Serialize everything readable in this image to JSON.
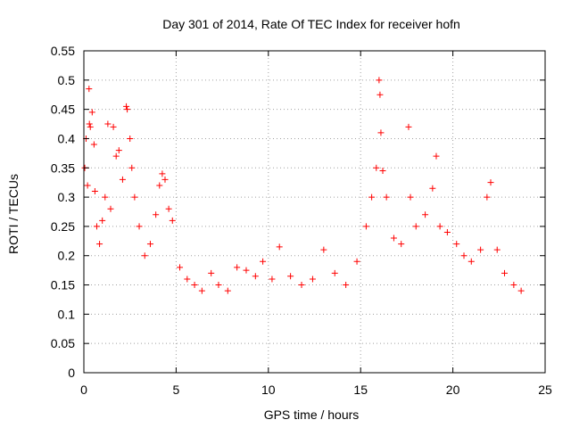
{
  "chart_data": {
    "type": "scatter",
    "title": "Day 301 of 2014, Rate Of TEC Index for receiver hofn",
    "xlabel": "GPS time / hours",
    "ylabel": "ROTI / TECUs",
    "xlim": [
      0,
      25
    ],
    "ylim": [
      0,
      0.55
    ],
    "xticks": [
      0,
      5,
      10,
      15,
      20,
      25
    ],
    "yticks": [
      0,
      0.05,
      0.1,
      0.15,
      0.2,
      0.25,
      0.3,
      0.35,
      0.4,
      0.45,
      0.5,
      0.55
    ],
    "grid": true,
    "marker": "+",
    "color": "#ff0000",
    "series": [
      {
        "values": [
          [
            0.05,
            0.35
          ],
          [
            0.12,
            0.4
          ],
          [
            0.2,
            0.32
          ],
          [
            0.28,
            0.485
          ],
          [
            0.3,
            0.425
          ],
          [
            0.35,
            0.42
          ],
          [
            0.45,
            0.445
          ],
          [
            0.55,
            0.39
          ],
          [
            0.6,
            0.31
          ],
          [
            0.7,
            0.25
          ],
          [
            0.85,
            0.22
          ],
          [
            1.0,
            0.26
          ],
          [
            1.15,
            0.3
          ],
          [
            1.3,
            0.425
          ],
          [
            1.45,
            0.28
          ],
          [
            1.6,
            0.42
          ],
          [
            1.75,
            0.37
          ],
          [
            1.9,
            0.38
          ],
          [
            2.1,
            0.33
          ],
          [
            2.3,
            0.455
          ],
          [
            2.35,
            0.45
          ],
          [
            2.5,
            0.4
          ],
          [
            2.6,
            0.35
          ],
          [
            2.75,
            0.3
          ],
          [
            3.0,
            0.25
          ],
          [
            3.3,
            0.2
          ],
          [
            3.6,
            0.22
          ],
          [
            3.9,
            0.27
          ],
          [
            4.1,
            0.32
          ],
          [
            4.25,
            0.34
          ],
          [
            4.4,
            0.33
          ],
          [
            4.6,
            0.28
          ],
          [
            4.8,
            0.26
          ],
          [
            5.2,
            0.18
          ],
          [
            5.6,
            0.16
          ],
          [
            6.0,
            0.15
          ],
          [
            6.4,
            0.14
          ],
          [
            6.9,
            0.17
          ],
          [
            7.3,
            0.15
          ],
          [
            7.8,
            0.14
          ],
          [
            8.3,
            0.18
          ],
          [
            8.8,
            0.175
          ],
          [
            9.3,
            0.165
          ],
          [
            9.7,
            0.19
          ],
          [
            10.2,
            0.16
          ],
          [
            10.6,
            0.215
          ],
          [
            11.2,
            0.165
          ],
          [
            11.8,
            0.15
          ],
          [
            12.4,
            0.16
          ],
          [
            13.0,
            0.21
          ],
          [
            13.6,
            0.17
          ],
          [
            14.2,
            0.15
          ],
          [
            14.8,
            0.19
          ],
          [
            15.3,
            0.25
          ],
          [
            15.6,
            0.3
          ],
          [
            15.85,
            0.35
          ],
          [
            16.0,
            0.5
          ],
          [
            16.05,
            0.475
          ],
          [
            16.1,
            0.41
          ],
          [
            16.2,
            0.345
          ],
          [
            16.4,
            0.3
          ],
          [
            16.8,
            0.23
          ],
          [
            17.2,
            0.22
          ],
          [
            17.6,
            0.42
          ],
          [
            17.7,
            0.3
          ],
          [
            18.0,
            0.25
          ],
          [
            18.5,
            0.27
          ],
          [
            18.9,
            0.315
          ],
          [
            19.1,
            0.37
          ],
          [
            19.3,
            0.25
          ],
          [
            19.7,
            0.24
          ],
          [
            20.2,
            0.22
          ],
          [
            20.6,
            0.2
          ],
          [
            21.0,
            0.19
          ],
          [
            21.5,
            0.21
          ],
          [
            21.85,
            0.3
          ],
          [
            22.05,
            0.325
          ],
          [
            22.4,
            0.21
          ],
          [
            22.8,
            0.17
          ],
          [
            23.3,
            0.15
          ],
          [
            23.7,
            0.14
          ]
        ]
      }
    ]
  }
}
